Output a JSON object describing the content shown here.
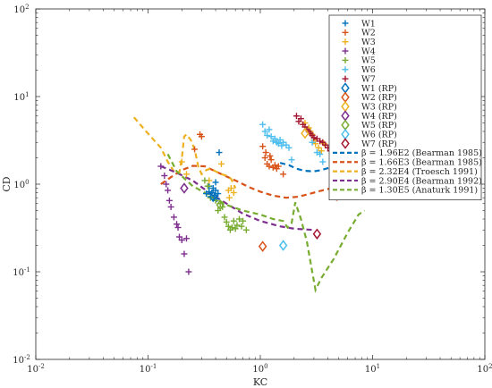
{
  "chart_data": {
    "type": "scatter",
    "x_scale": "log",
    "y_scale": "log",
    "xlim": [
      0.01,
      100
    ],
    "ylim": [
      0.01,
      100
    ],
    "grid": false,
    "legend_position": "top-right",
    "xlabel": "KC",
    "ylabel": "CD",
    "x_ticks": [
      {
        "value": 0.01,
        "base": "10",
        "exp": "-2"
      },
      {
        "value": 0.1,
        "base": "10",
        "exp": "-1"
      },
      {
        "value": 1,
        "base": "10",
        "exp": "0"
      },
      {
        "value": 10,
        "base": "10",
        "exp": "1"
      },
      {
        "value": 100,
        "base": "10",
        "exp": "2"
      }
    ],
    "y_ticks": [
      {
        "value": 0.01,
        "base": "10",
        "exp": "-2"
      },
      {
        "value": 0.1,
        "base": "10",
        "exp": "-1"
      },
      {
        "value": 1,
        "base": "10",
        "exp": "0"
      },
      {
        "value": 10,
        "base": "10",
        "exp": "1"
      },
      {
        "value": 100,
        "base": "10",
        "exp": "2"
      }
    ],
    "series": [
      {
        "name": "W1",
        "marker": "plus",
        "color": "#0072BD",
        "points": [
          [
            0.33,
            0.78
          ],
          [
            0.35,
            0.82
          ],
          [
            0.36,
            0.72
          ],
          [
            0.37,
            0.8
          ],
          [
            0.38,
            0.7
          ],
          [
            0.39,
            0.75
          ],
          [
            0.4,
            0.85
          ],
          [
            0.4,
            1.05
          ],
          [
            0.41,
            0.68
          ],
          [
            0.42,
            0.78
          ],
          [
            0.43,
            2.3
          ],
          [
            0.35,
            0.95
          ],
          [
            0.38,
            0.9
          ]
        ]
      },
      {
        "name": "W2",
        "marker": "plus",
        "color": "#D95319",
        "points": [
          [
            0.26,
            2.5
          ],
          [
            0.29,
            3.7
          ],
          [
            0.3,
            3.5
          ],
          [
            1.05,
            2.7
          ],
          [
            1.1,
            2.0
          ],
          [
            1.12,
            2.3
          ],
          [
            1.15,
            1.7
          ],
          [
            1.2,
            1.6
          ],
          [
            1.22,
            2.1
          ],
          [
            1.25,
            1.9
          ],
          [
            1.3,
            1.55
          ],
          [
            1.35,
            1.65
          ],
          [
            1.4,
            1.5
          ],
          [
            1.45,
            1.6
          ],
          [
            1.6,
            1.3
          ],
          [
            4.6,
            0.85
          ],
          [
            4.8,
            0.7
          ]
        ]
      },
      {
        "name": "W3",
        "marker": "plus",
        "color": "#EDB120",
        "points": [
          [
            0.2,
            1.8
          ],
          [
            0.22,
            1.3
          ],
          [
            0.35,
            1.1
          ],
          [
            0.45,
            1.7
          ],
          [
            0.52,
            0.85
          ],
          [
            0.53,
            0.7
          ],
          [
            0.55,
            0.9
          ],
          [
            0.58,
            0.8
          ],
          [
            2.5,
            5.0
          ],
          [
            2.7,
            4.4
          ],
          [
            2.8,
            4.0
          ],
          [
            2.9,
            3.7
          ],
          [
            3.0,
            3.2
          ],
          [
            3.1,
            2.9
          ],
          [
            3.3,
            2.6
          ],
          [
            3.5,
            2.4
          ],
          [
            3.7,
            2.9
          ]
        ]
      },
      {
        "name": "W4",
        "marker": "plus",
        "color": "#7E2F8E",
        "points": [
          [
            0.13,
            1.6
          ],
          [
            0.14,
            1.25
          ],
          [
            0.145,
            1.0
          ],
          [
            0.15,
            0.85
          ],
          [
            0.155,
            0.65
          ],
          [
            0.16,
            0.55
          ],
          [
            0.17,
            0.42
          ],
          [
            0.18,
            0.35
          ],
          [
            0.185,
            0.32
          ],
          [
            0.19,
            0.25
          ],
          [
            0.2,
            0.23
          ],
          [
            0.21,
            0.16
          ],
          [
            0.22,
            0.24
          ],
          [
            0.23,
            0.1
          ]
        ]
      },
      {
        "name": "W5",
        "marker": "plus",
        "color": "#77AC30",
        "points": [
          [
            0.32,
            1.1
          ],
          [
            0.34,
            0.95
          ],
          [
            0.36,
            0.7
          ],
          [
            0.4,
            0.65
          ],
          [
            0.42,
            0.5
          ],
          [
            0.44,
            0.6
          ],
          [
            0.46,
            0.55
          ],
          [
            0.48,
            0.42
          ],
          [
            0.5,
            0.37
          ],
          [
            0.52,
            0.33
          ],
          [
            0.54,
            0.3
          ],
          [
            0.56,
            0.32
          ],
          [
            0.58,
            0.38
          ],
          [
            0.6,
            0.31
          ],
          [
            0.62,
            0.34
          ],
          [
            0.65,
            0.4
          ],
          [
            0.68,
            0.33
          ],
          [
            0.7,
            0.38
          ],
          [
            0.75,
            0.3
          ]
        ]
      },
      {
        "name": "W6",
        "marker": "plus",
        "color": "#4DBEEE",
        "points": [
          [
            1.05,
            4.8
          ],
          [
            1.1,
            4.0
          ],
          [
            1.15,
            3.6
          ],
          [
            1.2,
            4.2
          ],
          [
            1.25,
            3.5
          ],
          [
            1.3,
            3.1
          ],
          [
            1.35,
            3.3
          ],
          [
            1.4,
            3.0
          ],
          [
            1.45,
            2.9
          ],
          [
            1.5,
            3.2
          ],
          [
            1.6,
            3.0
          ],
          [
            1.7,
            2.8
          ],
          [
            1.8,
            2.6
          ],
          [
            1.55,
            2.75
          ],
          [
            1.9,
            1.9
          ],
          [
            2.9,
            3.0
          ],
          [
            3.2,
            2.3
          ],
          [
            3.4,
            2.2
          ],
          [
            3.6,
            1.8
          ]
        ]
      },
      {
        "name": "W7",
        "marker": "plus",
        "color": "#A2142F",
        "points": [
          [
            2.1,
            6.0
          ],
          [
            2.2,
            5.2
          ],
          [
            2.3,
            5.6
          ],
          [
            2.4,
            4.8
          ],
          [
            2.5,
            4.5
          ],
          [
            2.6,
            4.2
          ],
          [
            2.7,
            4.0
          ],
          [
            2.8,
            3.8
          ],
          [
            2.9,
            3.6
          ],
          [
            3.0,
            3.4
          ],
          [
            3.2,
            3.3
          ],
          [
            3.4,
            3.1
          ],
          [
            3.6,
            3.0
          ],
          [
            3.8,
            2.8
          ],
          [
            4.0,
            2.6
          ],
          [
            4.2,
            2.4
          ],
          [
            4.4,
            2.2
          ]
        ]
      },
      {
        "name": "W1 (RP)",
        "marker": "diamond",
        "color": "#0072BD",
        "points": [
          [
            0.38,
            0.72
          ]
        ]
      },
      {
        "name": "W2 (RP)",
        "marker": "diamond",
        "color": "#D95319",
        "points": [
          [
            1.05,
            0.195
          ]
        ]
      },
      {
        "name": "W3 (RP)",
        "marker": "diamond",
        "color": "#EDB120",
        "points": [
          [
            2.5,
            3.8
          ]
        ]
      },
      {
        "name": "W4 (RP)",
        "marker": "diamond",
        "color": "#7E2F8E",
        "points": [
          [
            0.21,
            0.9
          ]
        ]
      },
      {
        "name": "W5 (RP)",
        "marker": "diamond",
        "color": "#77AC30",
        "points": [
          [
            0.44,
            0.58
          ]
        ]
      },
      {
        "name": "W6 (RP)",
        "marker": "diamond",
        "color": "#4DBEEE",
        "points": [
          [
            1.6,
            0.2
          ]
        ]
      },
      {
        "name": "W7 (RP)",
        "marker": "diamond",
        "color": "#A2142F",
        "points": [
          [
            3.2,
            0.27
          ]
        ]
      },
      {
        "name": "β = 1.96E2 (Bearman 1985)",
        "marker": "dashed-line",
        "color": "#0072BD",
        "points": [
          [
            1.5,
            1.75
          ],
          [
            1.8,
            1.65
          ],
          [
            2.1,
            1.5
          ],
          [
            2.5,
            1.42
          ],
          [
            3.0,
            1.4
          ],
          [
            3.5,
            1.45
          ],
          [
            4.2,
            1.55
          ],
          [
            5.0,
            1.62
          ],
          [
            6.0,
            1.72
          ],
          [
            7.0,
            1.8
          ]
        ]
      },
      {
        "name": "β = 1.66E3 (Bearman 1985)",
        "marker": "dashed-line",
        "color": "#D95319",
        "points": [
          [
            0.13,
            1.0
          ],
          [
            0.16,
            1.2
          ],
          [
            0.2,
            1.45
          ],
          [
            0.25,
            1.62
          ],
          [
            0.32,
            1.6
          ],
          [
            0.45,
            1.3
          ],
          [
            0.6,
            1.1
          ],
          [
            0.8,
            0.92
          ],
          [
            1.0,
            0.82
          ],
          [
            1.3,
            0.74
          ],
          [
            1.7,
            0.7
          ],
          [
            2.2,
            0.72
          ],
          [
            3.0,
            0.8
          ],
          [
            4.0,
            0.88
          ],
          [
            5.0,
            0.95
          ],
          [
            6.0,
            1.02
          ]
        ]
      },
      {
        "name": "β = 2.32E4 (Troesch 1991)",
        "marker": "dashed-line",
        "color": "#EDB120",
        "points": [
          [
            0.075,
            5.8
          ],
          [
            0.09,
            4.4
          ],
          [
            0.11,
            3.3
          ],
          [
            0.13,
            2.6
          ],
          [
            0.15,
            1.8
          ],
          [
            0.17,
            1.4
          ],
          [
            0.19,
            1.35
          ],
          [
            0.2,
            2.0
          ],
          [
            0.21,
            3.5
          ],
          [
            0.22,
            3.7
          ],
          [
            0.24,
            3.2
          ],
          [
            0.26,
            2.5
          ],
          [
            0.28,
            1.6
          ],
          [
            0.3,
            1.3
          ],
          [
            0.33,
            1.45
          ],
          [
            0.36,
            1.5
          ],
          [
            0.4,
            1.4
          ],
          [
            0.45,
            1.3
          ],
          [
            0.5,
            1.25
          ],
          [
            0.55,
            1.15
          ],
          [
            0.6,
            0.9
          ]
        ]
      },
      {
        "name": "β = 2.90E4 (Bearman 1992)",
        "marker": "dashed-line",
        "color": "#7E2F8E",
        "points": [
          [
            0.13,
            1.6
          ],
          [
            0.18,
            1.35
          ],
          [
            0.25,
            1.1
          ],
          [
            0.35,
            0.8
          ],
          [
            0.5,
            0.6
          ],
          [
            0.7,
            0.46
          ],
          [
            1.0,
            0.38
          ],
          [
            1.5,
            0.33
          ],
          [
            2.0,
            0.31
          ],
          [
            3.0,
            0.3
          ]
        ]
      },
      {
        "name": "β = 1.30E5 (Anaturk 1991)",
        "marker": "dashed-line",
        "color": "#77AC30",
        "points": [
          [
            0.15,
            2.2
          ],
          [
            0.18,
            1.4
          ],
          [
            0.25,
            0.95
          ],
          [
            0.35,
            0.75
          ],
          [
            0.5,
            0.58
          ],
          [
            0.7,
            0.5
          ],
          [
            1.0,
            0.45
          ],
          [
            1.3,
            0.4
          ],
          [
            1.6,
            0.38
          ],
          [
            1.75,
            0.32
          ],
          [
            1.9,
            0.36
          ],
          [
            2.05,
            0.62
          ],
          [
            2.3,
            0.4
          ],
          [
            2.6,
            0.22
          ],
          [
            2.9,
            0.1
          ],
          [
            3.1,
            0.062
          ],
          [
            3.5,
            0.085
          ],
          [
            4.5,
            0.14
          ],
          [
            6.0,
            0.28
          ],
          [
            7.5,
            0.45
          ],
          [
            8.5,
            0.5
          ]
        ]
      }
    ]
  }
}
